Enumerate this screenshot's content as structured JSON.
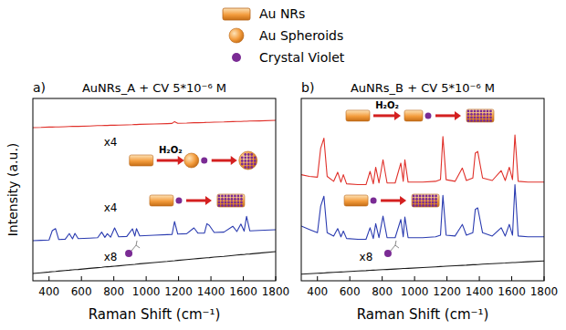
{
  "figure_legend": [
    {
      "name": "Au NRs",
      "color": "#f39c3d",
      "marker": "rect"
    },
    {
      "name": "Au Spheroids",
      "color": "#f39c3d",
      "marker": "circle"
    },
    {
      "name": "Crystal Violet",
      "color": "#7a2b94",
      "marker": "dot"
    }
  ],
  "chart_data": [
    {
      "type": "line",
      "panel_label": "a)",
      "title": "AuNRs_A + CV 5*10⁻⁶ M",
      "x_label": "Raman Shift (cm⁻¹)",
      "y_label": "Intensity (a.u.)",
      "xlim": [
        300,
        1800
      ],
      "xticks": [
        400,
        600,
        800,
        1000,
        1200,
        1400,
        1600,
        1800
      ],
      "ylim": [
        0,
        100
      ],
      "tick_labels": "x",
      "grid": false,
      "x": [
        300,
        350,
        400,
        420,
        440,
        460,
        500,
        525,
        545,
        560,
        580,
        650,
        700,
        725,
        745,
        760,
        780,
        805,
        830,
        880,
        915,
        930,
        940,
        960,
        1050,
        1130,
        1160,
        1175,
        1195,
        1250,
        1295,
        1320,
        1360,
        1375,
        1390,
        1420,
        1480,
        1535,
        1560,
        1585,
        1605,
        1620,
        1640,
        1700,
        1800
      ],
      "series": [
        {
          "color": "#e0302a",
          "values": [
            84.0,
            84.1,
            84.3,
            84.3,
            84.4,
            84.4,
            84.5,
            84.6,
            84.7,
            84.7,
            84.7,
            84.9,
            85.1,
            85.1,
            85.2,
            85.2,
            85.3,
            85.3,
            85.4,
            85.5,
            85.6,
            85.7,
            85.7,
            85.8,
            86.0,
            86.2,
            86.3,
            87.3,
            86.4,
            86.5,
            86.7,
            86.7,
            86.8,
            86.9,
            86.9,
            87.0,
            87.1,
            87.3,
            87.4,
            87.4,
            87.5,
            87.5,
            87.6,
            87.7,
            88.0
          ]
        },
        {
          "color": "#2a3bb0",
          "values": [
            22.0,
            22.2,
            22.4,
            27.5,
            28.6,
            22.6,
            22.8,
            25.9,
            23.0,
            26.0,
            23.1,
            23.4,
            23.6,
            26.7,
            23.8,
            25.8,
            23.9,
            29.0,
            24.1,
            24.3,
            28.5,
            24.5,
            28.6,
            24.6,
            25.0,
            25.3,
            25.4,
            32.5,
            25.6,
            25.8,
            29.0,
            26.1,
            26.2,
            31.3,
            30.4,
            26.5,
            26.7,
            29.9,
            27.0,
            31.1,
            27.2,
            35.3,
            27.4,
            27.6,
            28.0
          ]
        },
        {
          "color": "#1a1a1a",
          "values": [
            4.0,
            4.4,
            4.8,
            5.0,
            5.1,
            5.3,
            5.6,
            5.8,
            6.0,
            6.1,
            6.2,
            6.8,
            7.2,
            7.4,
            7.6,
            7.7,
            7.8,
            8.0,
            8.2,
            8.6,
            8.9,
            9.0,
            9.1,
            9.3,
            10.0,
            10.6,
            10.9,
            11.0,
            11.2,
            11.6,
            12.0,
            12.2,
            12.5,
            12.6,
            12.7,
            13.0,
            13.4,
            13.9,
            14.1,
            14.3,
            14.4,
            14.6,
            14.7,
            15.2,
            16.0
          ]
        }
      ],
      "annotations": [
        {
          "text": "x4",
          "x": 780,
          "y": 74
        },
        {
          "text": "x4",
          "x": 780,
          "y": 38
        },
        {
          "text": "x8",
          "x": 780,
          "y": 11
        }
      ],
      "inset_labels": [
        {
          "text": "H₂O₂",
          "x": 1150,
          "y": 70
        }
      ]
    },
    {
      "type": "line",
      "panel_label": "b)",
      "title": "AuNRs_B + CV 5*10⁻⁶ M",
      "x_label": "Raman Shift (cm⁻¹)",
      "xlim": [
        300,
        1800
      ],
      "xticks": [
        400,
        600,
        800,
        1000,
        1200,
        1400,
        1600,
        1800
      ],
      "ylim": [
        0,
        110
      ],
      "tick_labels": "x",
      "grid": false,
      "x": [
        300,
        350,
        400,
        420,
        440,
        460,
        500,
        525,
        545,
        560,
        580,
        650,
        700,
        725,
        745,
        760,
        780,
        805,
        830,
        880,
        915,
        930,
        940,
        960,
        1050,
        1130,
        1160,
        1175,
        1195,
        1250,
        1295,
        1320,
        1360,
        1375,
        1390,
        1420,
        1480,
        1535,
        1560,
        1585,
        1605,
        1620,
        1640,
        1700,
        1800
      ],
      "series": [
        {
          "color": "#e0302a",
          "values": [
            64,
            63,
            62.5,
            80,
            86,
            63,
            60,
            65.5,
            59.5,
            64,
            58.5,
            58,
            58,
            66,
            58.5,
            68.5,
            59,
            73,
            59,
            59,
            71,
            60,
            73,
            59.5,
            59.5,
            60,
            61,
            87,
            61,
            60,
            68,
            60.5,
            62,
            77,
            78,
            62,
            60.5,
            66.5,
            60.5,
            68.5,
            61,
            88,
            60,
            59.5,
            59.5
          ]
        },
        {
          "color": "#2a3bb0",
          "values": [
            33,
            31,
            29,
            45,
            51,
            29,
            27,
            31.5,
            26.5,
            30,
            25.5,
            25,
            25,
            32,
            25.5,
            34.5,
            26,
            39,
            26,
            26,
            37,
            26.5,
            38.5,
            26,
            26,
            26.5,
            27.5,
            51.5,
            27.5,
            27,
            34,
            27.5,
            29,
            43,
            44,
            29,
            27,
            32,
            27,
            34,
            27.5,
            58,
            27,
            26.5,
            26.5
          ]
        },
        {
          "color": "#1a1a1a",
          "values": [
            4.0,
            4.3,
            4.5,
            4.6,
            4.7,
            4.9,
            5.1,
            5.2,
            5.3,
            5.4,
            5.5,
            5.9,
            6.1,
            6.3,
            6.4,
            6.5,
            6.6,
            6.7,
            6.8,
            7.1,
            7.3,
            7.4,
            7.4,
            7.5,
            8.0,
            8.4,
            8.6,
            8.7,
            8.8,
            9.1,
            9.3,
            9.4,
            9.7,
            9.7,
            9.8,
            10.0,
            10.3,
            10.6,
            10.7,
            10.9,
            11.0,
            11.0,
            11.1,
            11.5,
            12.0
          ]
        }
      ],
      "annotations": [
        {
          "text": "x8",
          "x": 700,
          "y": 12
        }
      ],
      "inset_labels": [
        {
          "text": "H₂O₂",
          "x": 830,
          "y": 104
        }
      ]
    }
  ]
}
